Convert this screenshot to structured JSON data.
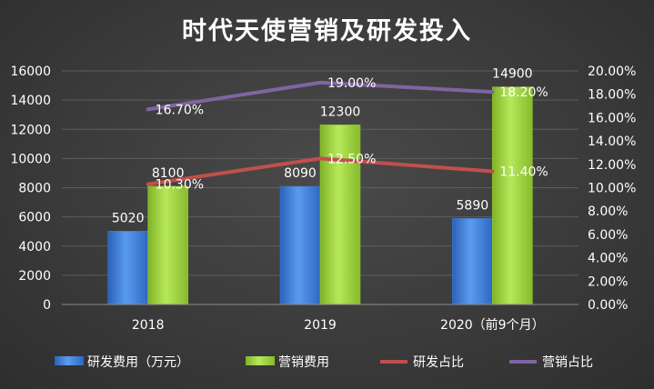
{
  "chart_data": {
    "type": "bar",
    "title": "时代天使营销及研发投入",
    "categories": [
      "2018",
      "2019",
      "2020（前9个月）"
    ],
    "series": [
      {
        "name": "研发费用（万元）",
        "kind": "bar",
        "axis": "left",
        "color": "#3f7fd6",
        "values": [
          5020,
          8090,
          5890
        ],
        "labels": [
          "5020",
          "8090",
          "5890"
        ]
      },
      {
        "name": "营销费用",
        "kind": "bar",
        "axis": "left",
        "color": "#9bd136",
        "values": [
          8100,
          12300,
          14900
        ],
        "labels": [
          "8100",
          "12300",
          "14900"
        ]
      },
      {
        "name": "研发占比",
        "kind": "line",
        "axis": "right",
        "color": "#c0504d",
        "values": [
          10.3,
          12.5,
          11.4
        ],
        "labels": [
          "10.30%",
          "12.50%",
          "11.40%"
        ]
      },
      {
        "name": "营销占比",
        "kind": "line",
        "axis": "right",
        "color": "#8064a2",
        "values": [
          16.7,
          19.0,
          18.2
        ],
        "labels": [
          "16.70%",
          "19.00%",
          "18.20%"
        ]
      }
    ],
    "y_left": {
      "min": 0,
      "max": 16000,
      "step": 2000,
      "ticks": [
        "0",
        "2000",
        "4000",
        "6000",
        "8000",
        "10000",
        "12000",
        "14000",
        "16000"
      ]
    },
    "y_right": {
      "min": 0,
      "max": 20,
      "step": 2,
      "ticks": [
        "0.00%",
        "2.00%",
        "4.00%",
        "6.00%",
        "8.00%",
        "10.00%",
        "12.00%",
        "14.00%",
        "16.00%",
        "18.00%",
        "20.00%"
      ]
    },
    "grid": true,
    "legend": "bottom"
  }
}
